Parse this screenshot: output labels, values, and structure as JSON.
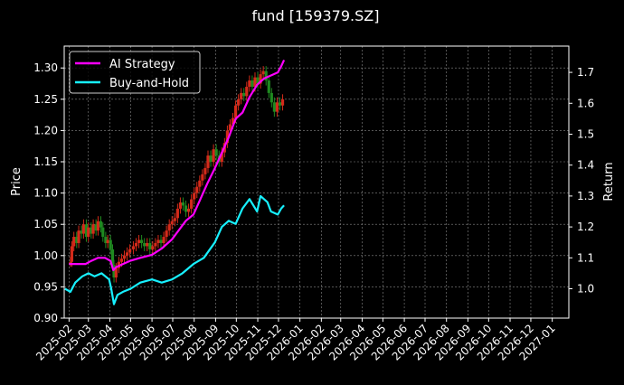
{
  "chart_data": {
    "type": "line",
    "title": "fund [159379.SZ]",
    "ylabel_left": "Price",
    "ylabel_right": "Return",
    "ylim_left": [
      0.9,
      1.335
    ],
    "ylim_right": [
      0.905,
      1.785
    ],
    "xlim": [
      "2025-01-25",
      "2027-01-25"
    ],
    "yticks_left": [
      "0.90",
      "0.95",
      "1.00",
      "1.05",
      "1.10",
      "1.15",
      "1.20",
      "1.25",
      "1.30"
    ],
    "yticks_right": [
      "1.0",
      "1.1",
      "1.2",
      "1.3",
      "1.4",
      "1.5",
      "1.6",
      "1.7"
    ],
    "x_ticks": [
      "2025-02",
      "2025-03",
      "2025-04",
      "2025-05",
      "2025-06",
      "2025-07",
      "2025-08",
      "2025-09",
      "2025-10",
      "2025-11",
      "2025-12",
      "2026-01",
      "2026-02",
      "2026-03",
      "2026-04",
      "2026-05",
      "2026-06",
      "2026-07",
      "2026-08",
      "2026-09",
      "2026-10",
      "2026-11",
      "2026-12",
      "2027-01"
    ],
    "grid": true,
    "legend_position": "top-left",
    "candles": {
      "axis": "left",
      "up_color": "#d42a1a",
      "down_color": "#1f8a20",
      "points": [
        [
          "2025-02-03",
          0.99
        ],
        [
          "2025-02-05",
          1.015
        ],
        [
          "2025-02-08",
          1.03
        ],
        [
          "2025-02-12",
          1.02
        ],
        [
          "2025-02-15",
          1.04
        ],
        [
          "2025-02-19",
          1.035
        ],
        [
          "2025-02-22",
          1.05
        ],
        [
          "2025-02-26",
          1.03
        ],
        [
          "2025-03-01",
          1.045
        ],
        [
          "2025-03-05",
          1.035
        ],
        [
          "2025-03-08",
          1.05
        ],
        [
          "2025-03-12",
          1.04
        ],
        [
          "2025-03-15",
          1.055
        ],
        [
          "2025-03-19",
          1.045
        ],
        [
          "2025-03-22",
          1.03
        ],
        [
          "2025-03-26",
          1.02
        ],
        [
          "2025-03-29",
          1.025
        ],
        [
          "2025-04-02",
          1.01
        ],
        [
          "2025-04-05",
          0.985
        ],
        [
          "2025-04-07",
          0.965
        ],
        [
          "2025-04-10",
          0.98
        ],
        [
          "2025-04-14",
          0.99
        ],
        [
          "2025-04-18",
          0.995
        ],
        [
          "2025-04-22",
          1.0
        ],
        [
          "2025-04-26",
          1.005
        ],
        [
          "2025-04-30",
          1.01
        ],
        [
          "2025-05-05",
          1.015
        ],
        [
          "2025-05-09",
          1.02
        ],
        [
          "2025-05-13",
          1.025
        ],
        [
          "2025-05-17",
          1.02
        ],
        [
          "2025-05-21",
          1.015
        ],
        [
          "2025-05-25",
          1.02
        ],
        [
          "2025-05-29",
          1.01
        ],
        [
          "2025-06-02",
          1.015
        ],
        [
          "2025-06-06",
          1.02
        ],
        [
          "2025-06-10",
          1.025
        ],
        [
          "2025-06-14",
          1.02
        ],
        [
          "2025-06-18",
          1.03
        ],
        [
          "2025-06-22",
          1.04
        ],
        [
          "2025-06-26",
          1.05
        ],
        [
          "2025-06-30",
          1.055
        ],
        [
          "2025-07-04",
          1.06
        ],
        [
          "2025-07-08",
          1.075
        ],
        [
          "2025-07-12",
          1.085
        ],
        [
          "2025-07-16",
          1.08
        ],
        [
          "2025-07-20",
          1.07
        ],
        [
          "2025-07-24",
          1.075
        ],
        [
          "2025-07-28",
          1.09
        ],
        [
          "2025-08-01",
          1.1
        ],
        [
          "2025-08-05",
          1.11
        ],
        [
          "2025-08-09",
          1.12
        ],
        [
          "2025-08-13",
          1.13
        ],
        [
          "2025-08-17",
          1.14
        ],
        [
          "2025-08-21",
          1.16
        ],
        [
          "2025-08-25",
          1.15
        ],
        [
          "2025-08-29",
          1.17
        ],
        [
          "2025-09-02",
          1.16
        ],
        [
          "2025-09-06",
          1.15
        ],
        [
          "2025-09-10",
          1.165
        ],
        [
          "2025-09-14",
          1.18
        ],
        [
          "2025-09-18",
          1.2
        ],
        [
          "2025-09-22",
          1.21
        ],
        [
          "2025-09-26",
          1.22
        ],
        [
          "2025-09-30",
          1.24
        ],
        [
          "2025-10-04",
          1.25
        ],
        [
          "2025-10-08",
          1.26
        ],
        [
          "2025-10-12",
          1.255
        ],
        [
          "2025-10-16",
          1.27
        ],
        [
          "2025-10-20",
          1.28
        ],
        [
          "2025-10-24",
          1.27
        ],
        [
          "2025-10-28",
          1.285
        ],
        [
          "2025-11-01",
          1.275
        ],
        [
          "2025-11-05",
          1.29
        ],
        [
          "2025-11-09",
          1.295
        ],
        [
          "2025-11-13",
          1.28
        ],
        [
          "2025-11-17",
          1.26
        ],
        [
          "2025-11-21",
          1.245
        ],
        [
          "2025-11-25",
          1.23
        ],
        [
          "2025-11-29",
          1.245
        ],
        [
          "2025-12-03",
          1.24
        ],
        [
          "2025-12-07",
          1.25
        ]
      ]
    },
    "series": [
      {
        "name": "AI Strategy",
        "axis": "right",
        "color": "#ff00ff",
        "points": [
          [
            "2025-02-01",
            1.08
          ],
          [
            "2025-02-05",
            1.08
          ],
          [
            "2025-02-15",
            1.08
          ],
          [
            "2025-02-25",
            1.08
          ],
          [
            "2025-03-05",
            1.09
          ],
          [
            "2025-03-15",
            1.1
          ],
          [
            "2025-03-25",
            1.1
          ],
          [
            "2025-04-02",
            1.09
          ],
          [
            "2025-04-06",
            1.06
          ],
          [
            "2025-04-10",
            1.07
          ],
          [
            "2025-04-20",
            1.08
          ],
          [
            "2025-04-30",
            1.09
          ],
          [
            "2025-05-15",
            1.1
          ],
          [
            "2025-06-01",
            1.11
          ],
          [
            "2025-06-15",
            1.13
          ],
          [
            "2025-06-30",
            1.16
          ],
          [
            "2025-07-10",
            1.19
          ],
          [
            "2025-07-20",
            1.22
          ],
          [
            "2025-07-31",
            1.24
          ],
          [
            "2025-08-10",
            1.29
          ],
          [
            "2025-08-20",
            1.34
          ],
          [
            "2025-08-31",
            1.39
          ],
          [
            "2025-09-10",
            1.44
          ],
          [
            "2025-09-20",
            1.49
          ],
          [
            "2025-09-30",
            1.55
          ],
          [
            "2025-10-10",
            1.57
          ],
          [
            "2025-10-20",
            1.62
          ],
          [
            "2025-10-31",
            1.66
          ],
          [
            "2025-11-10",
            1.68
          ],
          [
            "2025-11-20",
            1.69
          ],
          [
            "2025-11-30",
            1.7
          ],
          [
            "2025-12-05",
            1.72
          ],
          [
            "2025-12-09",
            1.74
          ]
        ]
      },
      {
        "name": "Buy-and-Hold",
        "axis": "right",
        "color": "#17f0ff",
        "points": [
          [
            "2025-01-26",
            1.0
          ],
          [
            "2025-02-03",
            0.99
          ],
          [
            "2025-02-10",
            1.02
          ],
          [
            "2025-02-20",
            1.04
          ],
          [
            "2025-03-01",
            1.05
          ],
          [
            "2025-03-10",
            1.04
          ],
          [
            "2025-03-20",
            1.05
          ],
          [
            "2025-03-31",
            1.03
          ],
          [
            "2025-04-03",
            1.0
          ],
          [
            "2025-04-07",
            0.95
          ],
          [
            "2025-04-12",
            0.98
          ],
          [
            "2025-04-20",
            0.99
          ],
          [
            "2025-05-01",
            1.0
          ],
          [
            "2025-05-15",
            1.02
          ],
          [
            "2025-06-01",
            1.03
          ],
          [
            "2025-06-15",
            1.02
          ],
          [
            "2025-06-30",
            1.03
          ],
          [
            "2025-07-15",
            1.05
          ],
          [
            "2025-07-31",
            1.08
          ],
          [
            "2025-08-15",
            1.1
          ],
          [
            "2025-08-31",
            1.15
          ],
          [
            "2025-09-10",
            1.2
          ],
          [
            "2025-09-20",
            1.22
          ],
          [
            "2025-09-30",
            1.21
          ],
          [
            "2025-10-10",
            1.26
          ],
          [
            "2025-10-20",
            1.29
          ],
          [
            "2025-10-31",
            1.25
          ],
          [
            "2025-11-05",
            1.3
          ],
          [
            "2025-11-15",
            1.28
          ],
          [
            "2025-11-20",
            1.25
          ],
          [
            "2025-11-30",
            1.24
          ],
          [
            "2025-12-05",
            1.26
          ],
          [
            "2025-12-09",
            1.27
          ]
        ]
      }
    ]
  }
}
